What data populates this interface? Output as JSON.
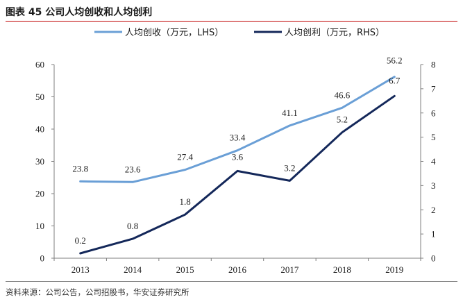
{
  "figure": {
    "title": "图表 45 公司人均创收和人均创利",
    "source": "资料来源：公司公告，公司招股书，华安证券研究所"
  },
  "chart_data": {
    "type": "line",
    "title": "公司人均创收和人均创利",
    "categories": [
      "2013",
      "2014",
      "2015",
      "2016",
      "2017",
      "2018",
      "2019"
    ],
    "series": [
      {
        "name": "人均创收（万元，LHS）",
        "axis": "left",
        "color": "#6a9fd6",
        "values": [
          23.8,
          23.6,
          27.4,
          33.4,
          41.1,
          46.6,
          56.2
        ],
        "labels": [
          "23.8",
          "23.6",
          "27.4",
          "33.4",
          "41.1",
          "46.6",
          "56.2"
        ]
      },
      {
        "name": "人均创利（万元，RHS）",
        "axis": "right",
        "color": "#14285a",
        "values": [
          0.2,
          0.8,
          1.8,
          3.6,
          3.2,
          5.2,
          6.7
        ],
        "labels": [
          "0.2",
          "0.8",
          "1.8",
          "3.6",
          "3.2",
          "5.2",
          "6.7"
        ]
      }
    ],
    "y_left": {
      "min": 0,
      "max": 60,
      "ticks": [
        "0",
        "10",
        "20",
        "30",
        "40",
        "50",
        "60"
      ]
    },
    "y_right": {
      "min": 0,
      "max": 8,
      "ticks": [
        "0",
        "1",
        "2",
        "3",
        "4",
        "5",
        "6",
        "7",
        "8"
      ]
    },
    "legend_position": "top",
    "grid": false
  }
}
